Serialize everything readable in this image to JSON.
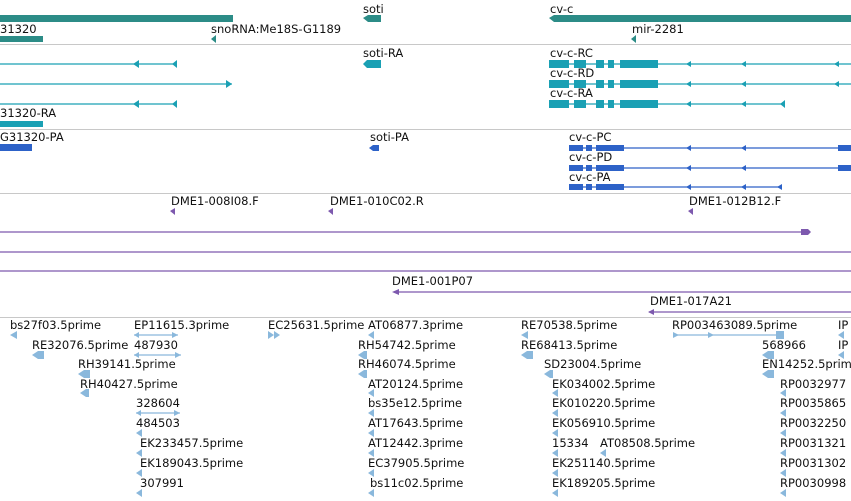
{
  "colors": {
    "gene": "#2c8c87",
    "transcript": "#1aa0b4",
    "protein": "#2d62c8",
    "clone": "#7d59ae",
    "est": "#8ab8dc",
    "separator": "#c8c8c8"
  },
  "tracks": {
    "genes": {
      "labels": {
        "g31320": "31320",
        "snorna": "snoRNA:Me18S-G1189",
        "soti": "soti",
        "cvc": "cv-c",
        "mir": "mir-2281"
      }
    },
    "transcripts": {
      "labels": {
        "soti_ra": "soti-RA",
        "cvc_rc": "cv-c-RC",
        "cvc_rd": "cv-c-RD",
        "cvc_ra": "cv-c-RA",
        "g31320_ra": "31320-RA"
      }
    },
    "proteins": {
      "labels": {
        "g31320_pa": "G31320-PA",
        "soti_pa": "soti-PA",
        "cvc_pc": "cv-c-PC",
        "cvc_pd": "cv-c-PD",
        "cvc_pa": "cv-c-PA"
      }
    },
    "clones": {
      "labels": {
        "d008i08": "DME1-008I08.F",
        "d010c02": "DME1-010C02.R",
        "d012b12": "DME1-012B12.F",
        "d001p07": "DME1-001P07",
        "d017a21": "DME1-017A21"
      }
    },
    "ests": {
      "labels": {
        "bs27f03": "bs27f03.5prime",
        "ep11615": "EP11615.3prime",
        "ec25631": "EC25631.5prime",
        "at06877": "AT06877.3prime",
        "re70538": "RE70538.5prime",
        "rp003463089": "RP003463089.5prime",
        "ip_a": "IP",
        "re32076": "RE32076.5prime",
        "n487930": "487930",
        "rh54742": "RH54742.5prime",
        "re68413": "RE68413.5prime",
        "n568966": "568966",
        "ip_b": "IP",
        "rh39141": "RH39141.5prime",
        "rh46074": "RH46074.5prime",
        "sd23004": "SD23004.5prime",
        "en14252": "EN14252.5prime",
        "rh40427": "RH40427.5prime",
        "at20124": "AT20124.5prime",
        "ek034002": "EK034002.5prime",
        "rp0032977": "RP0032977",
        "n328604": "328604",
        "bs35e12": "bs35e12.5prime",
        "ek010220": "EK010220.5prime",
        "rp0035865": "RP0035865",
        "n484503": "484503",
        "at17643": "AT17643.5prime",
        "ek056910": "EK056910.5prime",
        "rp0032250": "RP0032250",
        "ek233457": "EK233457.5prime",
        "at12442": "AT12442.3prime",
        "n15334": "15334",
        "at08508": "AT08508.5prime",
        "rp0031321": "RP0031321",
        "ek189043": "EK189043.5prime",
        "ec37905": "EC37905.5prime",
        "ek251140": "EK251140.5prime",
        "rp0031302": "RP0031302",
        "n307991": "307991",
        "bs11c02": "bs11c02.5prime",
        "ek189205": "EK189205.5prime",
        "rp0030998": "RP0030998"
      }
    }
  }
}
